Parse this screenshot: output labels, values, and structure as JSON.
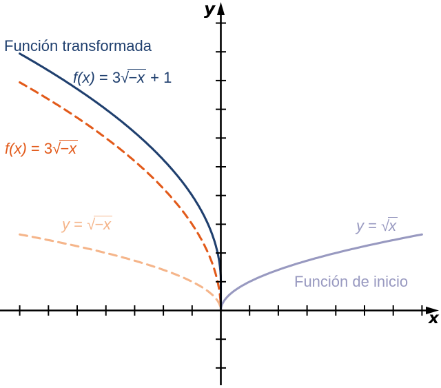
{
  "axes": {
    "x_label": "x",
    "y_label": "y",
    "color": "#000000",
    "x_range": [
      -7.7,
      7.6
    ],
    "y_range": [
      -2.7,
      10.7
    ],
    "grid": false,
    "x_ticks": [
      -7,
      -6,
      -5,
      -4,
      -3,
      -2,
      -1,
      1,
      2,
      3,
      4,
      5,
      6,
      7
    ],
    "y_ticks": [
      -2,
      -1,
      1,
      2,
      3,
      4,
      5,
      6,
      7,
      8,
      9,
      10
    ]
  },
  "chart_data": {
    "type": "line",
    "title": "",
    "legend_position": "inline-annotations",
    "series": [
      {
        "id": "funcion-transformada",
        "label_text": "f(x) = 3√(−x) + 1",
        "annotation": "Función transformada",
        "color": "#1f3f6e",
        "style": "solid",
        "expression": "3*sqrt(-x)+1",
        "a": 3,
        "sign": -1,
        "offset": 1,
        "domain": [
          -7,
          0
        ],
        "drop_to_origin": true,
        "points": [
          [
            -7,
            8.94
          ],
          [
            -6,
            8.35
          ],
          [
            -5,
            7.71
          ],
          [
            -4,
            7
          ],
          [
            -3,
            6.2
          ],
          [
            -2,
            5.24
          ],
          [
            -1,
            4
          ],
          [
            0,
            1
          ]
        ]
      },
      {
        "id": "tres-raiz-negativa",
        "label_text": "f(x) = 3√(−x)",
        "annotation": "",
        "color": "#e25a1a",
        "style": "dashed",
        "expression": "3*sqrt(-x)",
        "a": 3,
        "sign": -1,
        "offset": 0,
        "domain": [
          -7,
          0
        ],
        "drop_to_origin": false,
        "points": [
          [
            -7,
            7.94
          ],
          [
            -6,
            7.35
          ],
          [
            -5,
            6.71
          ],
          [
            -4,
            6
          ],
          [
            -3,
            5.2
          ],
          [
            -2,
            4.24
          ],
          [
            -1,
            3
          ],
          [
            0,
            0
          ]
        ]
      },
      {
        "id": "raiz-negativa",
        "label_text": "y = √(−x)",
        "annotation": "",
        "color": "#f5b58a",
        "style": "dashed",
        "expression": "sqrt(-x)",
        "a": 1,
        "sign": -1,
        "offset": 0,
        "domain": [
          -7,
          0
        ],
        "drop_to_origin": false,
        "points": [
          [
            -7,
            2.65
          ],
          [
            -6,
            2.45
          ],
          [
            -5,
            2.24
          ],
          [
            -4,
            2
          ],
          [
            -3,
            1.73
          ],
          [
            -2,
            1.41
          ],
          [
            -1,
            1
          ],
          [
            0,
            0
          ]
        ]
      },
      {
        "id": "raiz-inicio",
        "label_text": "y = √x",
        "annotation": "Función de inicio",
        "color": "#9899c0",
        "style": "solid",
        "expression": "sqrt(x)",
        "a": 1,
        "sign": 1,
        "offset": 0,
        "domain": [
          0,
          7
        ],
        "drop_to_origin": false,
        "points": [
          [
            0,
            0
          ],
          [
            1,
            1
          ],
          [
            2,
            1.41
          ],
          [
            3,
            1.73
          ],
          [
            4,
            2
          ],
          [
            5,
            2.24
          ],
          [
            6,
            2.45
          ],
          [
            7,
            2.65
          ]
        ]
      }
    ]
  },
  "labels": {
    "transformada": {
      "text": "Función transformada"
    },
    "f1": {
      "lhs": "f(x)",
      "mid": " = 3",
      "radicand": "−x",
      "tail": " + 1"
    },
    "f2": {
      "lhs": "f(x)",
      "mid": " = 3",
      "radicand": "−x",
      "tail": ""
    },
    "y_neg": {
      "lhs": "y",
      "mid": " = ",
      "radicand": "−x",
      "tail": ""
    },
    "y_pos": {
      "lhs": "y",
      "mid": " = ",
      "radicand": "x",
      "tail": ""
    },
    "inicio": {
      "text": "Función de inicio"
    },
    "x_axis": "x",
    "y_axis": "y"
  },
  "palette": {
    "transformed_navy": "#1f3f6e",
    "scaled_orange": "#e25a1a",
    "reflected_peach": "#f5b58a",
    "start_purple": "#9899c0",
    "axis_black": "#000000",
    "background": "#ffffff"
  }
}
